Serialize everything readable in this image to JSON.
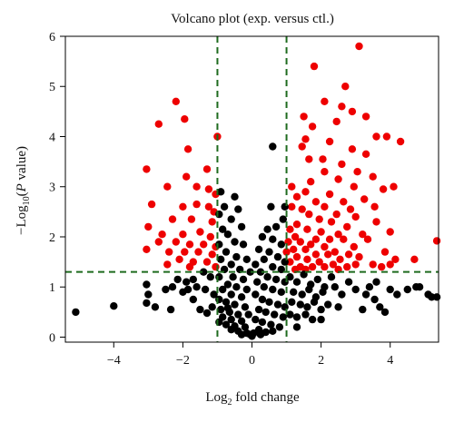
{
  "chart_data": {
    "type": "scatter",
    "title": "Volcano plot (exp. versus ctl.)",
    "xlabel": {
      "prefix": "Log",
      "sub": "2",
      "suffix": " fold change"
    },
    "ylabel": {
      "prefix": "−Log",
      "sub": "10",
      "mid": "(",
      "italic": "P",
      "suffix": " value)"
    },
    "xlim": [
      -5.4,
      5.4
    ],
    "ylim": [
      -0.1,
      6.0
    ],
    "xticks": [
      -4,
      -2,
      0,
      2,
      4
    ],
    "xtick_labels": [
      "−4",
      "−2",
      "0",
      "2",
      "4"
    ],
    "yticks": [
      0,
      1,
      2,
      3,
      4,
      5,
      6
    ],
    "ytick_labels": [
      "0",
      "1",
      "2",
      "3",
      "4",
      "5",
      "6"
    ],
    "thresholds": {
      "log2fc": [
        -1,
        1
      ],
      "neglog10p": 1.3
    },
    "colors": {
      "significant": "#ee0000",
      "not_significant": "#000000",
      "threshold_line": "#1e6b1e"
    },
    "series": [
      {
        "color_key": "significant",
        "points": [
          [
            -2.2,
            4.7
          ],
          [
            -1.95,
            4.35
          ],
          [
            -2.7,
            4.25
          ],
          [
            -1.85,
            3.75
          ],
          [
            -1.0,
            4.0
          ],
          [
            -1.3,
            3.35
          ],
          [
            -1.9,
            3.2
          ],
          [
            -3.05,
            3.35
          ],
          [
            -2.45,
            3.0
          ],
          [
            -1.6,
            3.0
          ],
          [
            -1.25,
            2.95
          ],
          [
            -1.05,
            2.85
          ],
          [
            -2.9,
            2.65
          ],
          [
            -1.6,
            2.65
          ],
          [
            -1.25,
            2.6
          ],
          [
            -1.1,
            2.5
          ],
          [
            -2.0,
            2.6
          ],
          [
            -2.3,
            2.35
          ],
          [
            -1.75,
            2.35
          ],
          [
            -1.15,
            2.3
          ],
          [
            -3.0,
            2.2
          ],
          [
            -2.6,
            2.05
          ],
          [
            -2.0,
            2.05
          ],
          [
            -1.5,
            2.1
          ],
          [
            -1.2,
            2.0
          ],
          [
            -2.7,
            1.9
          ],
          [
            -2.2,
            1.9
          ],
          [
            -1.8,
            1.85
          ],
          [
            -1.4,
            1.85
          ],
          [
            -1.05,
            1.8
          ],
          [
            -3.05,
            1.75
          ],
          [
            -2.4,
            1.7
          ],
          [
            -1.95,
            1.7
          ],
          [
            -1.55,
            1.7
          ],
          [
            -1.15,
            1.65
          ],
          [
            -2.1,
            1.55
          ],
          [
            -1.7,
            1.5
          ],
          [
            -1.3,
            1.5
          ],
          [
            -1.05,
            1.4
          ],
          [
            -1.8,
            1.4
          ],
          [
            -2.45,
            1.45
          ],
          [
            3.1,
            5.8
          ],
          [
            1.8,
            5.4
          ],
          [
            2.7,
            5.0
          ],
          [
            2.1,
            4.7
          ],
          [
            2.6,
            4.6
          ],
          [
            3.3,
            4.4
          ],
          [
            2.9,
            4.5
          ],
          [
            1.5,
            4.4
          ],
          [
            2.45,
            4.3
          ],
          [
            1.75,
            4.2
          ],
          [
            3.6,
            4.0
          ],
          [
            1.55,
            3.95
          ],
          [
            2.25,
            3.9
          ],
          [
            4.3,
            3.9
          ],
          [
            3.9,
            4.0
          ],
          [
            1.45,
            3.8
          ],
          [
            2.9,
            3.75
          ],
          [
            3.3,
            3.65
          ],
          [
            1.65,
            3.55
          ],
          [
            2.05,
            3.55
          ],
          [
            2.6,
            3.45
          ],
          [
            3.05,
            3.3
          ],
          [
            2.1,
            3.3
          ],
          [
            3.5,
            3.2
          ],
          [
            2.5,
            3.15
          ],
          [
            1.7,
            3.1
          ],
          [
            4.1,
            3.0
          ],
          [
            1.15,
            3.0
          ],
          [
            2.95,
            3.0
          ],
          [
            3.8,
            2.95
          ],
          [
            1.55,
            2.9
          ],
          [
            2.25,
            2.85
          ],
          [
            1.3,
            2.8
          ],
          [
            3.25,
            2.75
          ],
          [
            2.65,
            2.7
          ],
          [
            1.85,
            2.7
          ],
          [
            3.55,
            2.6
          ],
          [
            1.15,
            2.6
          ],
          [
            2.1,
            2.6
          ],
          [
            2.85,
            2.55
          ],
          [
            1.45,
            2.55
          ],
          [
            1.65,
            2.45
          ],
          [
            2.45,
            2.45
          ],
          [
            3.0,
            2.4
          ],
          [
            1.95,
            2.35
          ],
          [
            2.3,
            2.3
          ],
          [
            3.6,
            2.3
          ],
          [
            1.3,
            2.25
          ],
          [
            4.0,
            2.1
          ],
          [
            2.75,
            2.2
          ],
          [
            1.1,
            2.15
          ],
          [
            1.6,
            2.15
          ],
          [
            2.0,
            2.1
          ],
          [
            2.5,
            2.05
          ],
          [
            3.2,
            2.05
          ],
          [
            1.25,
            2.0
          ],
          [
            1.85,
            1.95
          ],
          [
            2.25,
            1.95
          ],
          [
            3.35,
            1.95
          ],
          [
            2.65,
            1.95
          ],
          [
            1.05,
            1.9
          ],
          [
            1.4,
            1.9
          ],
          [
            5.35,
            1.92
          ],
          [
            1.7,
            1.85
          ],
          [
            2.1,
            1.8
          ],
          [
            2.95,
            1.8
          ],
          [
            3.85,
            1.7
          ],
          [
            1.2,
            1.75
          ],
          [
            1.55,
            1.75
          ],
          [
            2.4,
            1.7
          ],
          [
            1.0,
            1.7
          ],
          [
            2.8,
            1.65
          ],
          [
            1.85,
            1.65
          ],
          [
            2.2,
            1.65
          ],
          [
            3.1,
            1.6
          ],
          [
            1.3,
            1.6
          ],
          [
            4.15,
            1.55
          ],
          [
            2.55,
            1.55
          ],
          [
            1.6,
            1.55
          ],
          [
            3.5,
            1.45
          ],
          [
            1.1,
            1.5
          ],
          [
            1.95,
            1.5
          ],
          [
            2.35,
            1.45
          ],
          [
            4.0,
            1.45
          ],
          [
            1.4,
            1.4
          ],
          [
            2.75,
            1.4
          ],
          [
            1.75,
            1.4
          ],
          [
            2.1,
            1.4
          ],
          [
            1.25,
            1.35
          ],
          [
            3.0,
            1.45
          ],
          [
            4.7,
            1.55
          ],
          [
            1.55,
            1.35
          ],
          [
            3.75,
            1.4
          ],
          [
            2.5,
            1.35
          ]
        ]
      },
      {
        "color_key": "not_significant",
        "points": [
          [
            -5.1,
            0.5
          ],
          [
            -4.0,
            0.62
          ],
          [
            -3.05,
            1.05
          ],
          [
            -3.0,
            0.85
          ],
          [
            -2.8,
            0.6
          ],
          [
            -3.05,
            0.68
          ],
          [
            -2.3,
            1.0
          ],
          [
            -2.0,
            0.9
          ],
          [
            -1.7,
            0.75
          ],
          [
            -1.5,
            0.55
          ],
          [
            -2.35,
            0.55
          ],
          [
            -1.3,
            0.48
          ],
          [
            -1.9,
            1.1
          ],
          [
            -2.15,
            1.15
          ],
          [
            -1.4,
            1.3
          ],
          [
            -1.7,
            1.15
          ],
          [
            -1.2,
            1.2
          ],
          [
            -2.5,
            0.95
          ],
          [
            -1.1,
            0.85
          ],
          [
            -1.6,
            1.0
          ],
          [
            -1.15,
            0.6
          ],
          [
            -1.85,
            0.95
          ],
          [
            -1.35,
            0.95
          ],
          [
            -0.9,
            2.9
          ],
          [
            -0.8,
            2.6
          ],
          [
            -0.5,
            2.8
          ],
          [
            -0.95,
            2.45
          ],
          [
            -0.6,
            2.35
          ],
          [
            -0.4,
            2.55
          ],
          [
            -0.85,
            2.15
          ],
          [
            -0.3,
            2.2
          ],
          [
            -0.7,
            2.05
          ],
          [
            -0.5,
            1.9
          ],
          [
            -0.95,
            1.85
          ],
          [
            -0.25,
            1.85
          ],
          [
            -0.75,
            1.7
          ],
          [
            -0.45,
            1.6
          ],
          [
            -0.15,
            1.55
          ],
          [
            -0.9,
            1.55
          ],
          [
            -0.6,
            1.45
          ],
          [
            -0.35,
            1.35
          ],
          [
            -0.05,
            1.3
          ],
          [
            -0.8,
            1.35
          ],
          [
            -0.55,
            1.2
          ],
          [
            -0.25,
            1.15
          ],
          [
            -0.95,
            1.2
          ],
          [
            -0.7,
            1.05
          ],
          [
            -0.45,
            1.0
          ],
          [
            -0.15,
            0.95
          ],
          [
            -0.85,
            0.95
          ],
          [
            -0.6,
            0.85
          ],
          [
            -0.3,
            0.8
          ],
          [
            -0.95,
            0.75
          ],
          [
            -0.75,
            0.7
          ],
          [
            -0.5,
            0.65
          ],
          [
            -0.2,
            0.6
          ],
          [
            -0.9,
            0.55
          ],
          [
            -0.65,
            0.5
          ],
          [
            -0.4,
            0.45
          ],
          [
            -0.1,
            0.45
          ],
          [
            -0.85,
            0.4
          ],
          [
            -0.6,
            0.35
          ],
          [
            -0.3,
            0.32
          ],
          [
            -0.75,
            0.25
          ],
          [
            -0.5,
            0.22
          ],
          [
            -0.2,
            0.2
          ],
          [
            -0.4,
            0.12
          ],
          [
            -0.15,
            0.08
          ],
          [
            -0.6,
            0.15
          ],
          [
            -0.05,
            0.05
          ],
          [
            -0.3,
            0.05
          ],
          [
            0.0,
            0.02
          ],
          [
            -0.95,
            0.3
          ],
          [
            -0.7,
            0.58
          ],
          [
            0.6,
            3.8
          ],
          [
            0.55,
            2.6
          ],
          [
            0.95,
            2.6
          ],
          [
            0.9,
            2.35
          ],
          [
            0.7,
            2.2
          ],
          [
            0.45,
            2.15
          ],
          [
            0.3,
            2.0
          ],
          [
            0.6,
            1.95
          ],
          [
            0.85,
            1.85
          ],
          [
            0.2,
            1.75
          ],
          [
            0.5,
            1.7
          ],
          [
            0.75,
            1.6
          ],
          [
            0.35,
            1.55
          ],
          [
            0.95,
            1.5
          ],
          [
            0.1,
            1.45
          ],
          [
            0.6,
            1.4
          ],
          [
            0.85,
            1.35
          ],
          [
            0.25,
            1.3
          ],
          [
            0.45,
            1.2
          ],
          [
            0.7,
            1.15
          ],
          [
            0.95,
            1.1
          ],
          [
            0.15,
            1.1
          ],
          [
            0.35,
            1.0
          ],
          [
            0.6,
            0.95
          ],
          [
            0.85,
            0.9
          ],
          [
            0.1,
            0.85
          ],
          [
            0.3,
            0.75
          ],
          [
            0.5,
            0.7
          ],
          [
            0.75,
            0.65
          ],
          [
            0.95,
            0.6
          ],
          [
            0.2,
            0.55
          ],
          [
            0.4,
            0.5
          ],
          [
            0.65,
            0.45
          ],
          [
            0.9,
            0.4
          ],
          [
            0.1,
            0.35
          ],
          [
            0.3,
            0.3
          ],
          [
            0.55,
            0.25
          ],
          [
            0.8,
            0.2
          ],
          [
            0.2,
            0.15
          ],
          [
            0.4,
            0.1
          ],
          [
            0.05,
            0.08
          ],
          [
            0.25,
            0.05
          ],
          [
            0.6,
            0.12
          ],
          [
            1.1,
            1.2
          ],
          [
            1.3,
            1.1
          ],
          [
            1.5,
            1.25
          ],
          [
            1.7,
            1.05
          ],
          [
            1.9,
            1.15
          ],
          [
            2.1,
            1.0
          ],
          [
            2.3,
            1.2
          ],
          [
            1.2,
            0.9
          ],
          [
            1.45,
            0.85
          ],
          [
            1.65,
            0.95
          ],
          [
            1.85,
            0.8
          ],
          [
            2.05,
            0.9
          ],
          [
            2.4,
            1.0
          ],
          [
            2.6,
            0.85
          ],
          [
            2.8,
            1.1
          ],
          [
            3.0,
            0.95
          ],
          [
            3.3,
            0.85
          ],
          [
            1.15,
            0.7
          ],
          [
            1.4,
            0.65
          ],
          [
            1.6,
            0.6
          ],
          [
            1.8,
            0.7
          ],
          [
            2.0,
            0.55
          ],
          [
            2.2,
            0.65
          ],
          [
            2.5,
            0.6
          ],
          [
            3.2,
            0.55
          ],
          [
            1.1,
            0.45
          ],
          [
            1.3,
            0.4
          ],
          [
            1.55,
            0.45
          ],
          [
            1.75,
            0.35
          ],
          [
            1.3,
            0.2
          ],
          [
            2.0,
            0.35
          ],
          [
            3.4,
            1.0
          ],
          [
            3.55,
            0.75
          ],
          [
            3.7,
            0.6
          ],
          [
            3.85,
            0.5
          ],
          [
            3.6,
            1.1
          ],
          [
            4.0,
            0.95
          ],
          [
            4.2,
            0.85
          ],
          [
            4.5,
            0.95
          ],
          [
            4.75,
            1.0
          ],
          [
            4.85,
            1.0
          ],
          [
            5.1,
            0.85
          ],
          [
            5.35,
            0.8
          ],
          [
            5.2,
            0.8
          ]
        ]
      }
    ]
  }
}
